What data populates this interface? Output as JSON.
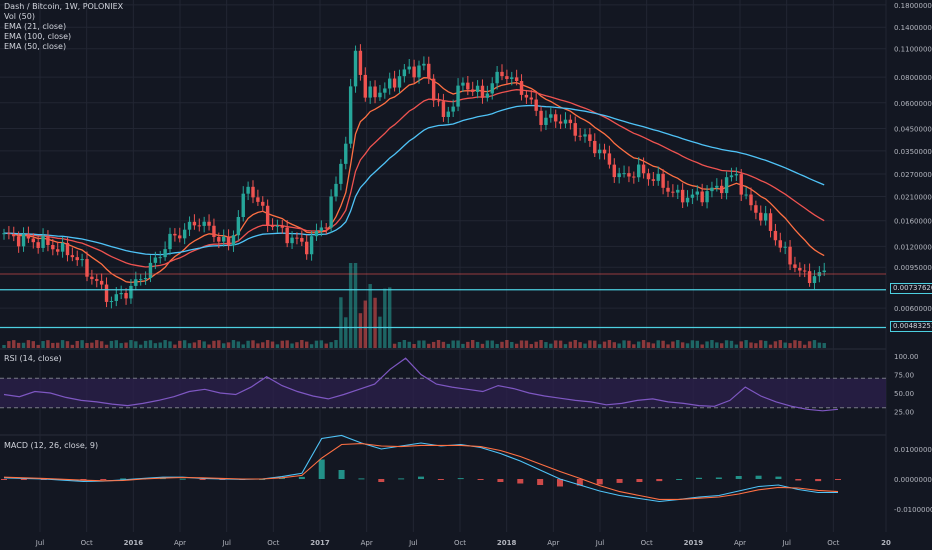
{
  "header": {
    "title": "Dash / Bitcoin, 1W, POLONIEX",
    "indicators": [
      "Vol (50)",
      "EMA (21, close)",
      "EMA (100, close)",
      "EMA (50, close)"
    ]
  },
  "price_labels": [
    "0.00737620",
    "0.00483251"
  ],
  "rsi": {
    "title": "RSI (14, close)",
    "ticks": [
      "100.00",
      "75.00",
      "50.00",
      "25.00"
    ]
  },
  "macd": {
    "title": "MACD (12, 26, close, 9)",
    "ticks": [
      "0.01000000",
      "0.00000000",
      "-0.01000000"
    ]
  },
  "colors": {
    "background": "#131722",
    "grid": "#222633",
    "up": "#26a69a",
    "down": "#ef5350",
    "ema21": "#ff7043",
    "ema50": "#ef5350",
    "ema100": "#4fc3f7",
    "rsi": "#7e57c2",
    "rsi_band": "#2a1f4a",
    "macd": "#4fc3f7",
    "signal": "#ff7043"
  },
  "chart_data": [
    {
      "type": "candlestick",
      "title": "Dash / Bitcoin, 1W, POLONIEX",
      "scale": "log",
      "y_ticks": [
        "0.18000000",
        "0.14000000",
        "0.11000000",
        "0.08000000",
        "0.06000000",
        "0.04500000",
        "0.03500000",
        "0.02700000",
        "0.02100000",
        "0.01600000",
        "0.01200000",
        "0.00950000",
        "0.00600000"
      ],
      "x_ticks": [
        "Jul",
        "Oct",
        "2016",
        "Apr",
        "Jul",
        "Oct",
        "2017",
        "Apr",
        "Jul",
        "Oct",
        "2018",
        "Apr",
        "Jul",
        "Oct",
        "2019",
        "Apr",
        "Jul",
        "Oct",
        "20"
      ],
      "current_price": 0.0088,
      "horizontal_lines": [
        0.0073762,
        0.00483251
      ],
      "anchors": [
        {
          "week": 0,
          "close": 0.0135
        },
        {
          "week": 8,
          "close": 0.0125
        },
        {
          "week": 14,
          "close": 0.011
        },
        {
          "week": 18,
          "close": 0.0085
        },
        {
          "week": 22,
          "close": 0.0065
        },
        {
          "week": 26,
          "close": 0.0075
        },
        {
          "week": 30,
          "close": 0.0095
        },
        {
          "week": 34,
          "close": 0.013
        },
        {
          "week": 40,
          "close": 0.016
        },
        {
          "week": 46,
          "close": 0.012
        },
        {
          "week": 50,
          "close": 0.024
        },
        {
          "week": 54,
          "close": 0.016
        },
        {
          "week": 58,
          "close": 0.0135
        },
        {
          "week": 62,
          "close": 0.012
        },
        {
          "week": 66,
          "close": 0.016
        },
        {
          "week": 68,
          "close": 0.024
        },
        {
          "week": 70,
          "close": 0.04
        },
        {
          "week": 72,
          "close": 0.11
        },
        {
          "week": 74,
          "close": 0.065
        },
        {
          "week": 78,
          "close": 0.07
        },
        {
          "week": 82,
          "close": 0.085
        },
        {
          "week": 86,
          "close": 0.09
        },
        {
          "week": 90,
          "close": 0.05
        },
        {
          "week": 94,
          "close": 0.075
        },
        {
          "week": 98,
          "close": 0.065
        },
        {
          "week": 102,
          "close": 0.085
        },
        {
          "week": 106,
          "close": 0.07
        },
        {
          "week": 110,
          "close": 0.05
        },
        {
          "week": 114,
          "close": 0.05
        },
        {
          "week": 118,
          "close": 0.042
        },
        {
          "week": 122,
          "close": 0.035
        },
        {
          "week": 126,
          "close": 0.026
        },
        {
          "week": 130,
          "close": 0.028
        },
        {
          "week": 134,
          "close": 0.025
        },
        {
          "week": 138,
          "close": 0.021
        },
        {
          "week": 142,
          "close": 0.021
        },
        {
          "week": 146,
          "close": 0.023
        },
        {
          "week": 150,
          "close": 0.027
        },
        {
          "week": 152,
          "close": 0.02
        },
        {
          "week": 156,
          "close": 0.016
        },
        {
          "week": 160,
          "close": 0.011
        },
        {
          "week": 164,
          "close": 0.0085
        },
        {
          "week": 168,
          "close": 0.0088
        }
      ]
    },
    {
      "type": "line",
      "title": "RSI (14, close)",
      "ylim": [
        0,
        100
      ],
      "levels": [
        70,
        30
      ],
      "values": [
        48,
        45,
        52,
        50,
        44,
        40,
        38,
        35,
        33,
        36,
        40,
        45,
        52,
        55,
        50,
        48,
        58,
        72,
        60,
        52,
        46,
        42,
        48,
        55,
        62,
        82,
        97,
        75,
        62,
        58,
        55,
        52,
        60,
        56,
        50,
        46,
        43,
        40,
        38,
        34,
        36,
        40,
        42,
        38,
        36,
        33,
        32,
        40,
        58,
        46,
        38,
        32,
        28,
        26,
        28
      ]
    },
    {
      "type": "line",
      "title": "MACD (12, 26, close, 9)",
      "series": [
        {
          "values": [
            0.0004,
            0.0002,
            0.0,
            -0.0004,
            -0.0008,
            -0.0007,
            -0.0003,
            0.0002,
            0.0006,
            0.0006,
            0.0002,
            0.0,
            -0.0001,
            0.0,
            0.0008,
            0.0019,
            0.0135,
            0.0145,
            0.012,
            0.01,
            0.011,
            0.012,
            0.011,
            0.0115,
            0.0105,
            0.0085,
            0.006,
            0.003,
            0.0,
            -0.002,
            -0.004,
            -0.0055,
            -0.0065,
            -0.0075,
            -0.0068,
            -0.006,
            -0.0055,
            -0.004,
            -0.0025,
            -0.002,
            -0.0035,
            -0.0045,
            -0.0045
          ]
        },
        {
          "values": [
            0.0006,
            0.0004,
            0.0002,
            -0.0001,
            -0.0004,
            -0.0006,
            -0.0005,
            0.0,
            0.0003,
            0.0005,
            0.0004,
            0.0002,
            0.0,
            0.0,
            0.0004,
            0.0012,
            0.007,
            0.0115,
            0.0118,
            0.011,
            0.0108,
            0.0112,
            0.0112,
            0.0112,
            0.0108,
            0.0095,
            0.0075,
            0.005,
            0.0025,
            0.0002,
            -0.0022,
            -0.0042,
            -0.0055,
            -0.0068,
            -0.0068,
            -0.0064,
            -0.006,
            -0.005,
            -0.0036,
            -0.0028,
            -0.003,
            -0.0038,
            -0.0042
          ]
        }
      ]
    }
  ]
}
